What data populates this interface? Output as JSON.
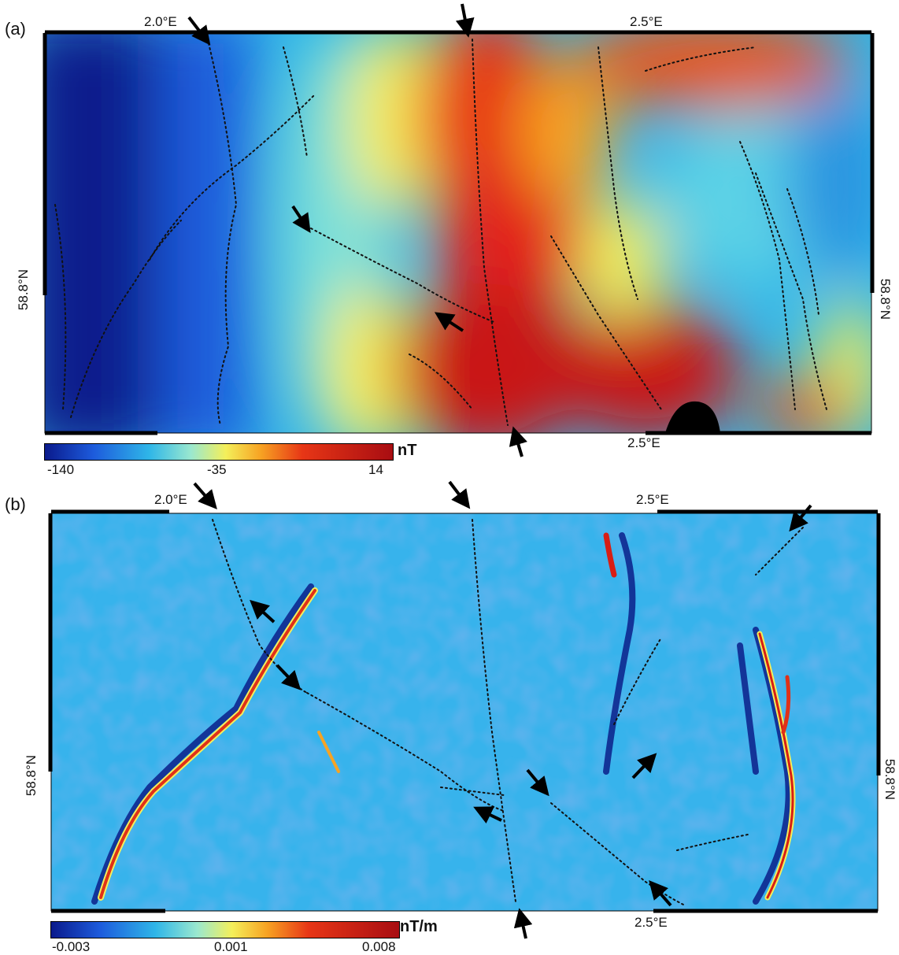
{
  "panel_a": {
    "label": "(a)",
    "top_labels": [
      "2.0°E",
      "2.5°E"
    ],
    "bottom_label": "2.5°E",
    "left_label": "58.8°N",
    "right_label": "58.8°N",
    "colorbar": {
      "unit": "nT",
      "ticks": [
        "-140",
        "-35",
        "14"
      ],
      "colors": [
        "#0a1a8c",
        "#1d5bdc",
        "#2fb6e8",
        "#8fe6c9",
        "#f4ef5a",
        "#f7a323",
        "#e73616",
        "#a80d12"
      ]
    }
  },
  "panel_b": {
    "label": "(b)",
    "top_labels": [
      "2.0°E",
      "2.5°E"
    ],
    "bottom_label": "2.5°E",
    "left_label": "58.8°N",
    "right_label": "58.8°N",
    "colorbar": {
      "unit": "nT/m",
      "ticks": [
        "-0.003",
        "0.001",
        "0.008"
      ],
      "colors": [
        "#0a1a8c",
        "#1d5bdc",
        "#2fb6e8",
        "#8fe6c9",
        "#f4ef5a",
        "#f7a323",
        "#e73616",
        "#a80d12"
      ]
    }
  }
}
